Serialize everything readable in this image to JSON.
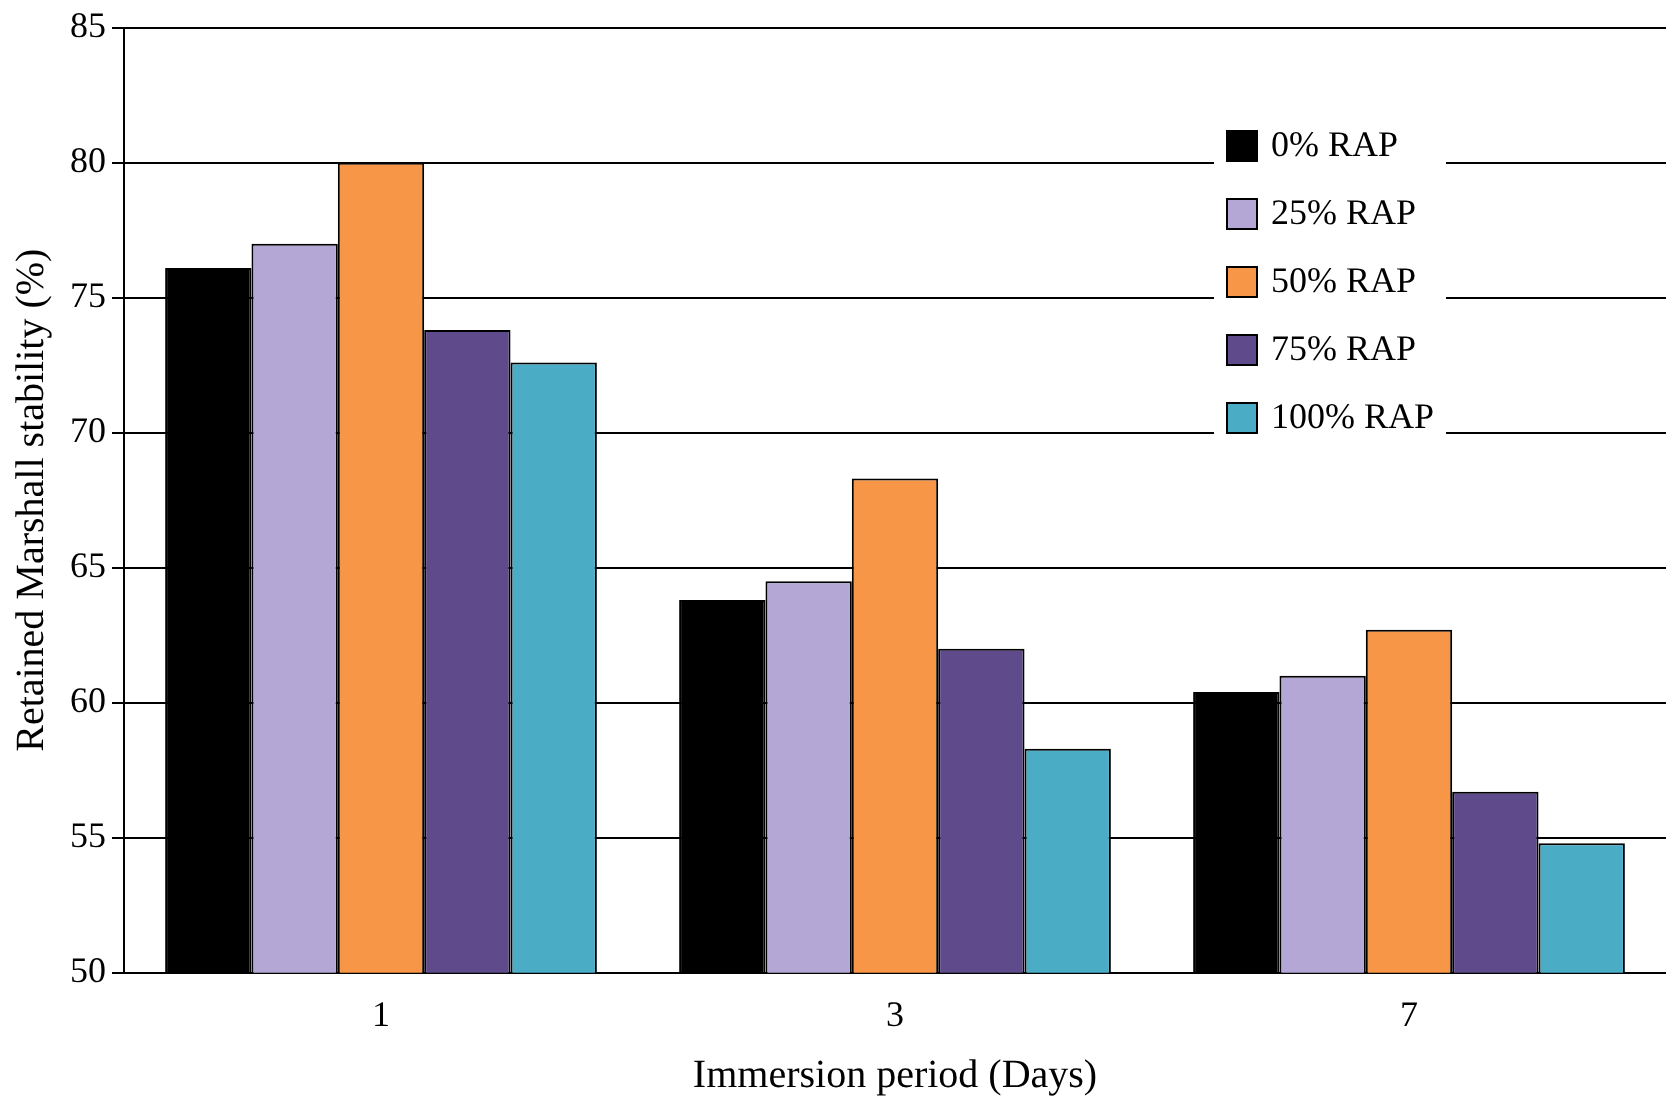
{
  "chart_data": {
    "type": "bar",
    "xlabel": "Immersion period (Days)",
    "ylabel": "Retained Marshall stability (%)",
    "categories": [
      "1",
      "3",
      "7"
    ],
    "series": [
      {
        "name": "0% RAP",
        "color": "#000000",
        "values": [
          76.1,
          63.8,
          60.4
        ]
      },
      {
        "name": "25% RAP",
        "color": "#b4a7d6",
        "values": [
          77.0,
          64.5,
          61.0
        ]
      },
      {
        "name": "50% RAP",
        "color": "#f79646",
        "values": [
          80.0,
          68.3,
          62.7
        ]
      },
      {
        "name": "75% RAP",
        "color": "#5f4b8b",
        "values": [
          73.8,
          62.0,
          56.7
        ]
      },
      {
        "name": "100% RAP",
        "color": "#4bacc6",
        "values": [
          72.6,
          58.3,
          54.8
        ]
      }
    ],
    "ylim": [
      50,
      85
    ],
    "yticks": [
      50,
      55,
      60,
      65,
      70,
      75,
      80,
      85
    ],
    "grid": "y",
    "legend": "top right"
  }
}
